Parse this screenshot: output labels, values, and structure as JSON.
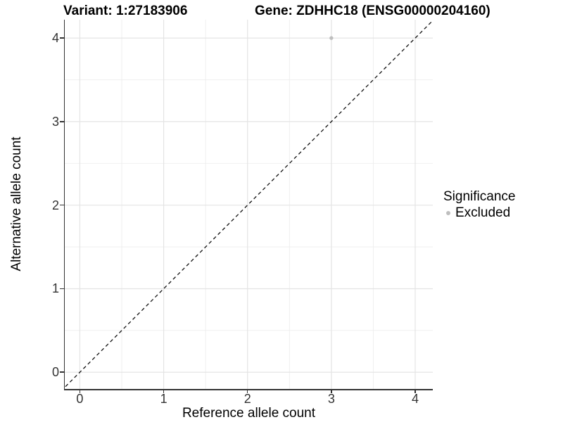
{
  "titles": {
    "variant": "Variant: 1:27183906",
    "gene": "Gene: ZDHHC18 (ENSG00000204160)"
  },
  "legend": {
    "title": "Significance",
    "items": [
      {
        "label": "Excluded",
        "color": "#bebebe"
      }
    ]
  },
  "colors": {
    "point": "#bebebe",
    "grid_major": "#e4e4e4",
    "grid_minor": "#ededed",
    "axis": "#333333",
    "identity_line": "#111111",
    "background": "#ffffff"
  },
  "chart_data": {
    "type": "scatter",
    "title": "Variant: 1:27183906 / Gene: ZDHHC18 (ENSG00000204160)",
    "xlabel": "Reference allele count",
    "ylabel": "Alternative allele count",
    "points": [
      {
        "x": 3,
        "y": 4,
        "series": "Excluded"
      }
    ],
    "x_ticks": [
      0,
      1,
      2,
      3,
      4
    ],
    "y_ticks": [
      0,
      1,
      2,
      3,
      4
    ],
    "x_minor": [
      0.5,
      1.5,
      2.5,
      3.5
    ],
    "y_minor": [
      0.5,
      1.5,
      2.5,
      3.5
    ],
    "xlim": [
      -0.18,
      4.21
    ],
    "ylim": [
      -0.2,
      4.22
    ],
    "grid": true,
    "identity_line": {
      "slope": 1,
      "intercept": 0,
      "style": "dashed"
    },
    "legend_position": "right",
    "legend_title": "Significance",
    "legend_entries": [
      "Excluded"
    ],
    "point_color": "#bebebe"
  }
}
